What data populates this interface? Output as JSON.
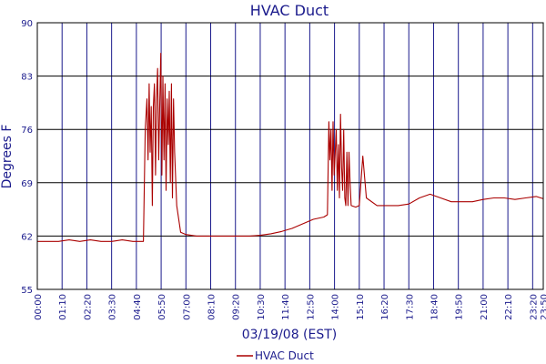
{
  "chart_data": {
    "type": "line",
    "title": "HVAC Duct",
    "xlabel": "03/19/08 (EST)",
    "ylabel": "Degrees F",
    "x_tick_labels": [
      "00:00",
      "01:10",
      "02:20",
      "03:30",
      "04:40",
      "05:50",
      "07:00",
      "08:10",
      "09:20",
      "10:30",
      "11:40",
      "12:50",
      "14:00",
      "15:10",
      "16:20",
      "17:30",
      "18:40",
      "19:50",
      "21:00",
      "22:10",
      "23:20",
      "23:50"
    ],
    "y_ticks": [
      55,
      62,
      69,
      76,
      83,
      90
    ],
    "ylim": [
      55,
      90
    ],
    "xlim": [
      "00:00",
      "23:50"
    ],
    "grid": true,
    "legend_position": "bottom-center",
    "colors": {
      "series": "#aa0000",
      "text": "#1a1a8c",
      "grid_vertical": "#1a1a8c",
      "grid_horizontal": "#000000"
    },
    "series": [
      {
        "name": "HVAC Duct",
        "points": [
          [
            "00:00",
            61.3
          ],
          [
            "00:30",
            61.3
          ],
          [
            "01:00",
            61.3
          ],
          [
            "01:30",
            61.5
          ],
          [
            "02:00",
            61.3
          ],
          [
            "02:30",
            61.5
          ],
          [
            "03:00",
            61.3
          ],
          [
            "03:30",
            61.3
          ],
          [
            "04:00",
            61.5
          ],
          [
            "04:30",
            61.3
          ],
          [
            "05:00",
            61.3
          ],
          [
            "05:05",
            76
          ],
          [
            "05:10",
            80
          ],
          [
            "05:13",
            72
          ],
          [
            "05:16",
            82
          ],
          [
            "05:19",
            73
          ],
          [
            "05:22",
            79
          ],
          [
            "05:25",
            66
          ],
          [
            "05:28",
            79
          ],
          [
            "05:31",
            82
          ],
          [
            "05:34",
            70
          ],
          [
            "05:37",
            80
          ],
          [
            "05:40",
            84
          ],
          [
            "05:43",
            72
          ],
          [
            "05:46",
            79
          ],
          [
            "05:49",
            86
          ],
          [
            "05:52",
            70
          ],
          [
            "05:55",
            83
          ],
          [
            "05:58",
            72
          ],
          [
            "06:01",
            82
          ],
          [
            "06:04",
            68
          ],
          [
            "06:07",
            80
          ],
          [
            "06:10",
            74
          ],
          [
            "06:13",
            81
          ],
          [
            "06:16",
            69
          ],
          [
            "06:19",
            82
          ],
          [
            "06:22",
            67
          ],
          [
            "06:25",
            80
          ],
          [
            "06:28",
            73
          ],
          [
            "06:34",
            66
          ],
          [
            "06:45",
            62.5
          ],
          [
            "07:00",
            62.2
          ],
          [
            "07:30",
            62
          ],
          [
            "08:00",
            62
          ],
          [
            "08:30",
            62
          ],
          [
            "09:00",
            62
          ],
          [
            "09:30",
            62
          ],
          [
            "10:00",
            62
          ],
          [
            "10:30",
            62.1
          ],
          [
            "11:00",
            62.3
          ],
          [
            "11:30",
            62.6
          ],
          [
            "12:00",
            63
          ],
          [
            "12:30",
            63.6
          ],
          [
            "13:00",
            64.2
          ],
          [
            "13:30",
            64.5
          ],
          [
            "13:40",
            64.8
          ],
          [
            "13:44",
            77
          ],
          [
            "13:47",
            72
          ],
          [
            "13:50",
            76
          ],
          [
            "13:53",
            68
          ],
          [
            "13:56",
            77
          ],
          [
            "13:59",
            70
          ],
          [
            "14:02",
            73
          ],
          [
            "14:05",
            76
          ],
          [
            "14:08",
            68
          ],
          [
            "14:11",
            74
          ],
          [
            "14:14",
            67
          ],
          [
            "14:17",
            78
          ],
          [
            "14:20",
            71
          ],
          [
            "14:23",
            68
          ],
          [
            "14:26",
            76
          ],
          [
            "14:29",
            67
          ],
          [
            "14:32",
            66
          ],
          [
            "14:35",
            73
          ],
          [
            "14:38",
            66
          ],
          [
            "14:41",
            73
          ],
          [
            "14:44",
            69
          ],
          [
            "14:47",
            66
          ],
          [
            "15:00",
            65.8
          ],
          [
            "15:10",
            66
          ],
          [
            "15:20",
            72.5
          ],
          [
            "15:30",
            67
          ],
          [
            "16:00",
            66
          ],
          [
            "16:30",
            66
          ],
          [
            "17:00",
            66
          ],
          [
            "17:30",
            66.2
          ],
          [
            "18:00",
            67
          ],
          [
            "18:30",
            67.5
          ],
          [
            "19:00",
            67
          ],
          [
            "19:30",
            66.5
          ],
          [
            "20:00",
            66.5
          ],
          [
            "20:30",
            66.5
          ],
          [
            "21:00",
            66.8
          ],
          [
            "21:30",
            67
          ],
          [
            "22:00",
            67
          ],
          [
            "22:30",
            66.8
          ],
          [
            "23:00",
            67
          ],
          [
            "23:30",
            67.2
          ],
          [
            "23:50",
            66.9
          ]
        ]
      }
    ]
  }
}
